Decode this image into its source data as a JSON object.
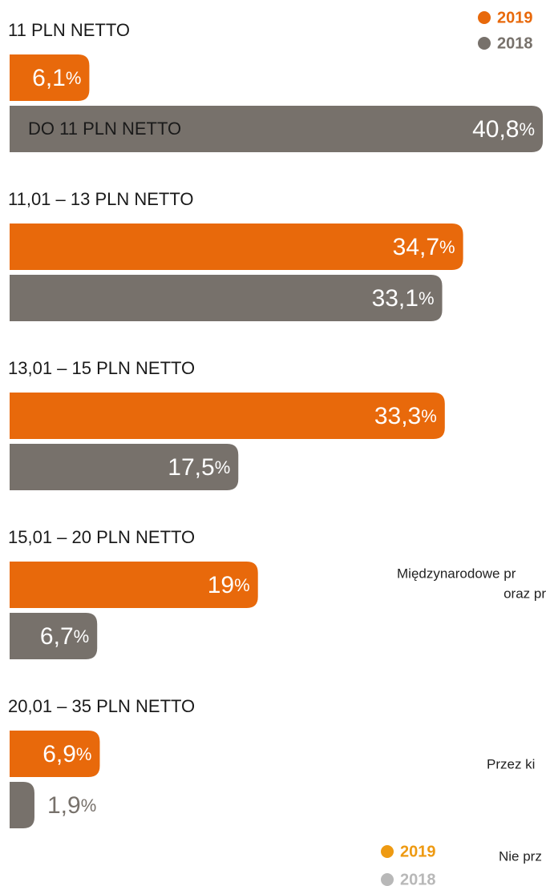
{
  "chart_data": {
    "type": "bar",
    "orientation": "horizontal",
    "categories": [
      "11 PLN NETTO",
      "11,01 – 13 PLN NETTO",
      "13,01 – 15 PLN NETTO",
      "15,01 – 20 PLN NETTO",
      "20,01 – 35 PLN NETTO"
    ],
    "inner_label": "DO 11 PLN NETTO",
    "value_suffix": "%",
    "series": [
      {
        "name": "2019",
        "color": "#e8690b",
        "values": [
          6.1,
          34.7,
          33.3,
          19,
          6.9
        ],
        "value_labels": [
          "6,1",
          "34,7",
          "33,3",
          "19",
          "6,9"
        ]
      },
      {
        "name": "2018",
        "color": "#77716b",
        "values": [
          40.8,
          33.1,
          17.5,
          6.7,
          1.9
        ],
        "value_labels": [
          "40,8",
          "33,1",
          "17,5",
          "6,7",
          "1,9"
        ]
      }
    ],
    "legend": {
      "position": "top-right"
    },
    "second_legend": [
      {
        "name": "2019",
        "color": "#ee9a12"
      },
      {
        "name": "2018",
        "color": "#b8b8b8"
      }
    ],
    "side_texts": [
      "Międzynarodowe pr",
      "oraz pr",
      "Przez ki",
      "Nie prz"
    ]
  }
}
